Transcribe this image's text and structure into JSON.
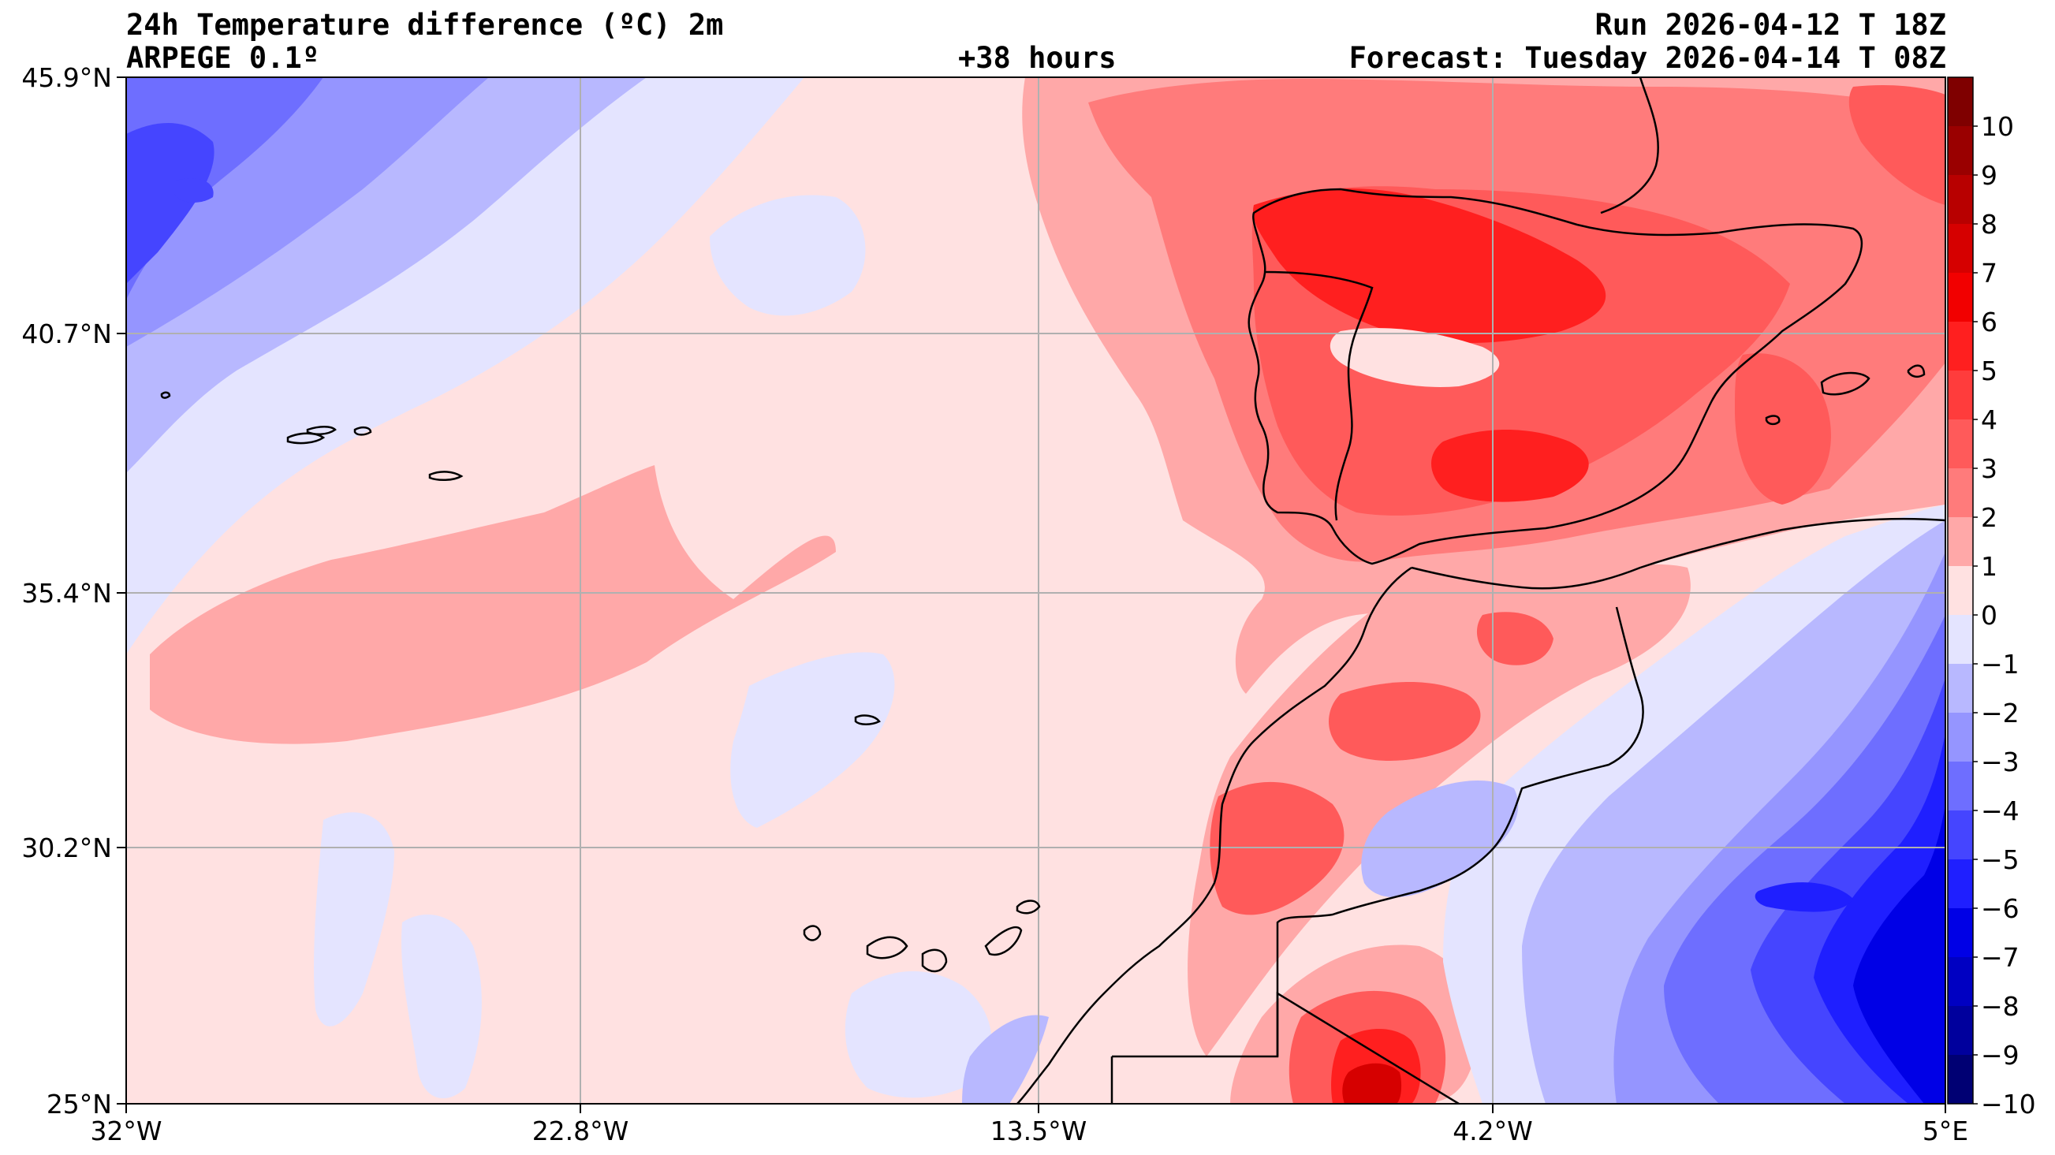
{
  "header": {
    "title": "24h Temperature difference (ºC) 2m",
    "model": "ARPEGE 0.1º",
    "lead_time": "+38 hours",
    "run": "Run 2026-04-12 T 18Z",
    "forecast": "Forecast: Tuesday 2026-04-14 T 08Z"
  },
  "axes": {
    "lat_labels": [
      "45.9°N",
      "40.7°N",
      "35.4°N",
      "30.2°N",
      "25°N"
    ],
    "lon_labels": [
      "32°W",
      "22.8°W",
      "13.5°W",
      "4.2°W",
      "5°E"
    ]
  },
  "colorbar": {
    "labels": [
      "10",
      "9",
      "8",
      "7",
      "6",
      "5",
      "4",
      "3",
      "2",
      "1",
      "0",
      "−1",
      "−2",
      "−3",
      "−4",
      "−5",
      "−6",
      "−7",
      "−8",
      "−9",
      "−10"
    ],
    "colors": [
      "#7f0000",
      "#9a0000",
      "#b80000",
      "#d60000",
      "#f20000",
      "#ff1f1f",
      "#ff3c3c",
      "#ff5a5a",
      "#ff7b7b",
      "#ffa8a8",
      "#ffe1e1",
      "#e4e4ff",
      "#b8b8ff",
      "#9595ff",
      "#6e6eff",
      "#4545ff",
      "#1f1fff",
      "#0000e6",
      "#0000c2",
      "#00009d",
      "#000073"
    ]
  },
  "field_colors": {
    "ocean_light_red": "#ffe1e1",
    "light_red": "#ffa8a8",
    "mid_red": "#ff7b7b",
    "red": "#ff5a5a",
    "strong_red": "#ff1f1f",
    "dark_red": "#d60000",
    "light_blue": "#e4e4ff",
    "blue2": "#b8b8ff",
    "blue3": "#9595ff",
    "blue4": "#6e6eff",
    "blue5": "#4545ff",
    "blue6": "#1f1fff",
    "blue7": "#0000e6",
    "grid": "#b0b0b0",
    "coast": "#000000"
  }
}
